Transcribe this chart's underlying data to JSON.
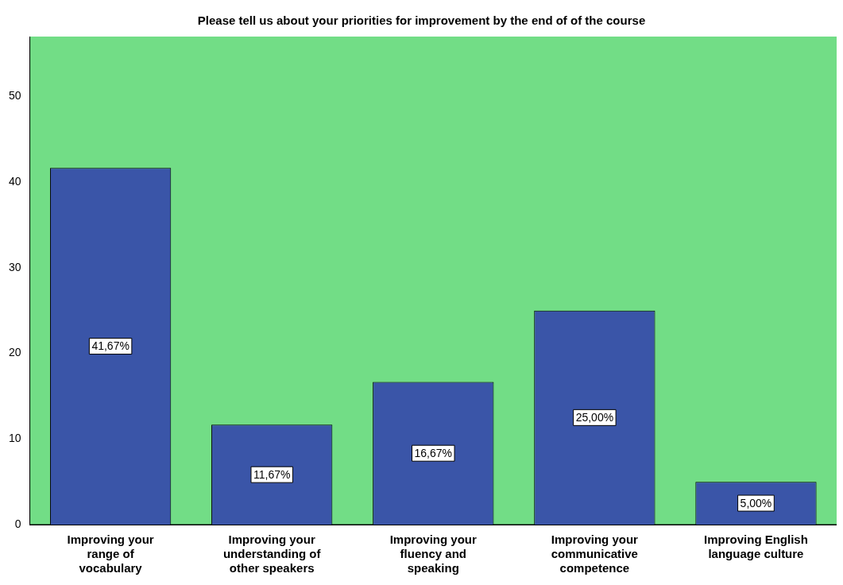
{
  "chart_data": {
    "type": "bar",
    "title": "Please tell us about your priorities for improvement by the end of of the course",
    "categories": [
      "Improving your range of vocabulary",
      "Improving your understanding of other speakers",
      "Improving your fluency and speaking",
      "Improving your communicative competence",
      "Improving English language culture"
    ],
    "values": [
      41.67,
      11.67,
      16.67,
      25,
      5
    ],
    "value_labels": [
      "41,67%",
      "11,67%",
      "16,67%",
      "25,00%",
      "5,00%"
    ],
    "color": "#3a55a8",
    "ylim": [
      0,
      57
    ],
    "yticks": [
      0,
      10,
      20,
      30,
      40,
      50
    ],
    "grid": false,
    "legend": false
  }
}
